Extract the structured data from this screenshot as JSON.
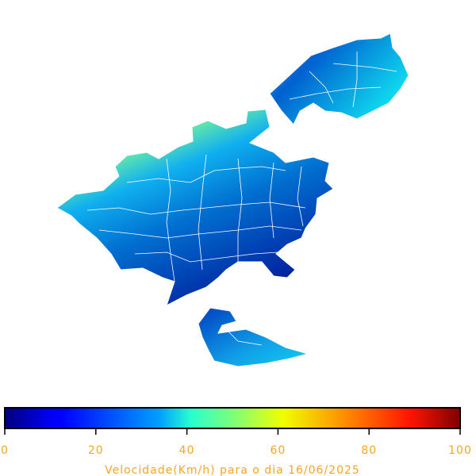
{
  "colorbar": {
    "label": "Velocidade(Km/h) para o dia 16/06/2025",
    "lim": [
      0,
      100
    ],
    "ticks": [
      0,
      20,
      40,
      60,
      80,
      100
    ]
  }
}
